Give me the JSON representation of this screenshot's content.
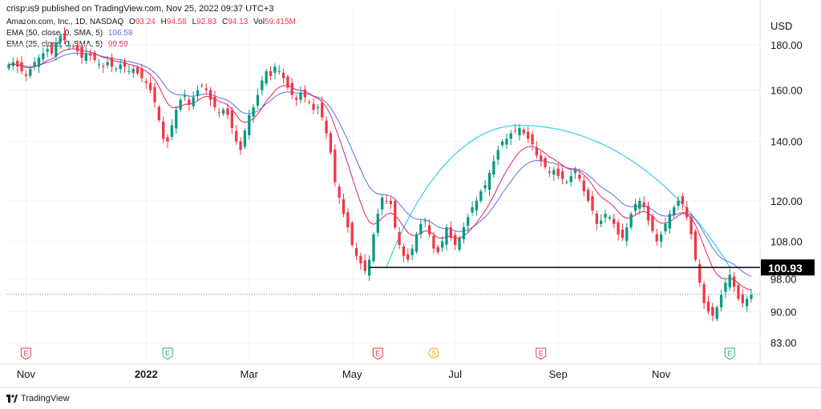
{
  "header": {
    "published": "crispus9 published on TradingView.com, Nov 25, 2022 09:37 UTC+3",
    "symbol": "Amazon.com, Inc., 1D, NASDAQ",
    "ohlc": [
      {
        "label": "O",
        "value": "93.24"
      },
      {
        "label": "H",
        "value": "94.58"
      },
      {
        "label": "L",
        "value": "92.83"
      },
      {
        "label": "C",
        "value": "94.13"
      },
      {
        "label": "Vol",
        "value": "59.415M"
      }
    ],
    "ema50_label": "EMA (50, close, 0, SMA, 5)",
    "ema50_value": "106.58",
    "ema25_label": "EMA (25, close, 0, SMA, 5)",
    "ema25_value": "99.59"
  },
  "footer": {
    "brand": "TradingView"
  },
  "colors": {
    "up": "#089981",
    "down": "#f23645",
    "ema50": "#5b6ee1",
    "ema25": "#e91e63",
    "arc": "#3fd4e6",
    "support": "#000000",
    "dotted": "#26a69a",
    "grid": "#f0f3fa",
    "axis_text": "#131722",
    "earnings": "#f23645",
    "earnings_beat": "#26a69a",
    "split": "#f0a202"
  },
  "chart_data": {
    "type": "candlestick",
    "currency": "USD",
    "x_ticks": [
      {
        "label": "Nov",
        "bold": false
      },
      {
        "label": "2022",
        "bold": true
      },
      {
        "label": "Mar",
        "bold": false
      },
      {
        "label": "May",
        "bold": false
      },
      {
        "label": "Jul",
        "bold": false
      },
      {
        "label": "Sep",
        "bold": false
      },
      {
        "label": "Nov",
        "bold": false
      }
    ],
    "y_ticks": [
      {
        "value": 180,
        "label": "180.00"
      },
      {
        "value": 160,
        "label": "160.00"
      },
      {
        "value": 140,
        "label": "140.00"
      },
      {
        "value": 120,
        "label": "120.00"
      },
      {
        "value": 108,
        "label": "108.00"
      },
      {
        "value": 98,
        "label": "98.00"
      },
      {
        "value": 90,
        "label": "90.00"
      },
      {
        "value": 83,
        "label": "83.00"
      }
    ],
    "y_scale": "log",
    "y_range": [
      79,
      198
    ],
    "support_level": 100.93,
    "support_label": "100.93",
    "last_price": 94.13,
    "events": [
      {
        "x_index": 4,
        "letter": "E",
        "kind": "earnings"
      },
      {
        "x_index": 37,
        "letter": "E",
        "kind": "earnings_beat"
      },
      {
        "x_index": 86,
        "letter": "E",
        "kind": "earnings"
      },
      {
        "x_index": 99,
        "letter": "S",
        "kind": "split"
      },
      {
        "x_index": 124,
        "letter": "E",
        "kind": "earnings"
      },
      {
        "x_index": 168,
        "letter": "E",
        "kind": "earnings_beat"
      }
    ],
    "closes": [
      171,
      172,
      170,
      168,
      166,
      169,
      172,
      174,
      176,
      178,
      176,
      181,
      184,
      182,
      180,
      179,
      177,
      174,
      176,
      175,
      173,
      171,
      170,
      172,
      170,
      169,
      171,
      170,
      168,
      169,
      167,
      165,
      163,
      160,
      155,
      148,
      141,
      140,
      146,
      152,
      156,
      158,
      154,
      157,
      160,
      162,
      160,
      156,
      153,
      151,
      152,
      150,
      145,
      140,
      137,
      144,
      150,
      153,
      158,
      164,
      168,
      166,
      170,
      168,
      165,
      161,
      158,
      156,
      159,
      157,
      155,
      152,
      153,
      149,
      143,
      136,
      126,
      121,
      116,
      112,
      107,
      104,
      102,
      100,
      103,
      110,
      116,
      121,
      120,
      119,
      112,
      107,
      104,
      103,
      106,
      110,
      113,
      114,
      110,
      106,
      105,
      108,
      112,
      109,
      107,
      109,
      112,
      115,
      118,
      120,
      123,
      125,
      129,
      133,
      137,
      140,
      141,
      143,
      144,
      145,
      143,
      141,
      139,
      135,
      133,
      131,
      129,
      130,
      128,
      127,
      126,
      128,
      130,
      127,
      123,
      120,
      117,
      113,
      114,
      116,
      115,
      113,
      110,
      109,
      112,
      116,
      119,
      120,
      118,
      114,
      111,
      108,
      110,
      113,
      116,
      118,
      120,
      119,
      115,
      110,
      103,
      97,
      92,
      90,
      89,
      91,
      94,
      97,
      99,
      96,
      93,
      92,
      93,
      94
    ]
  }
}
